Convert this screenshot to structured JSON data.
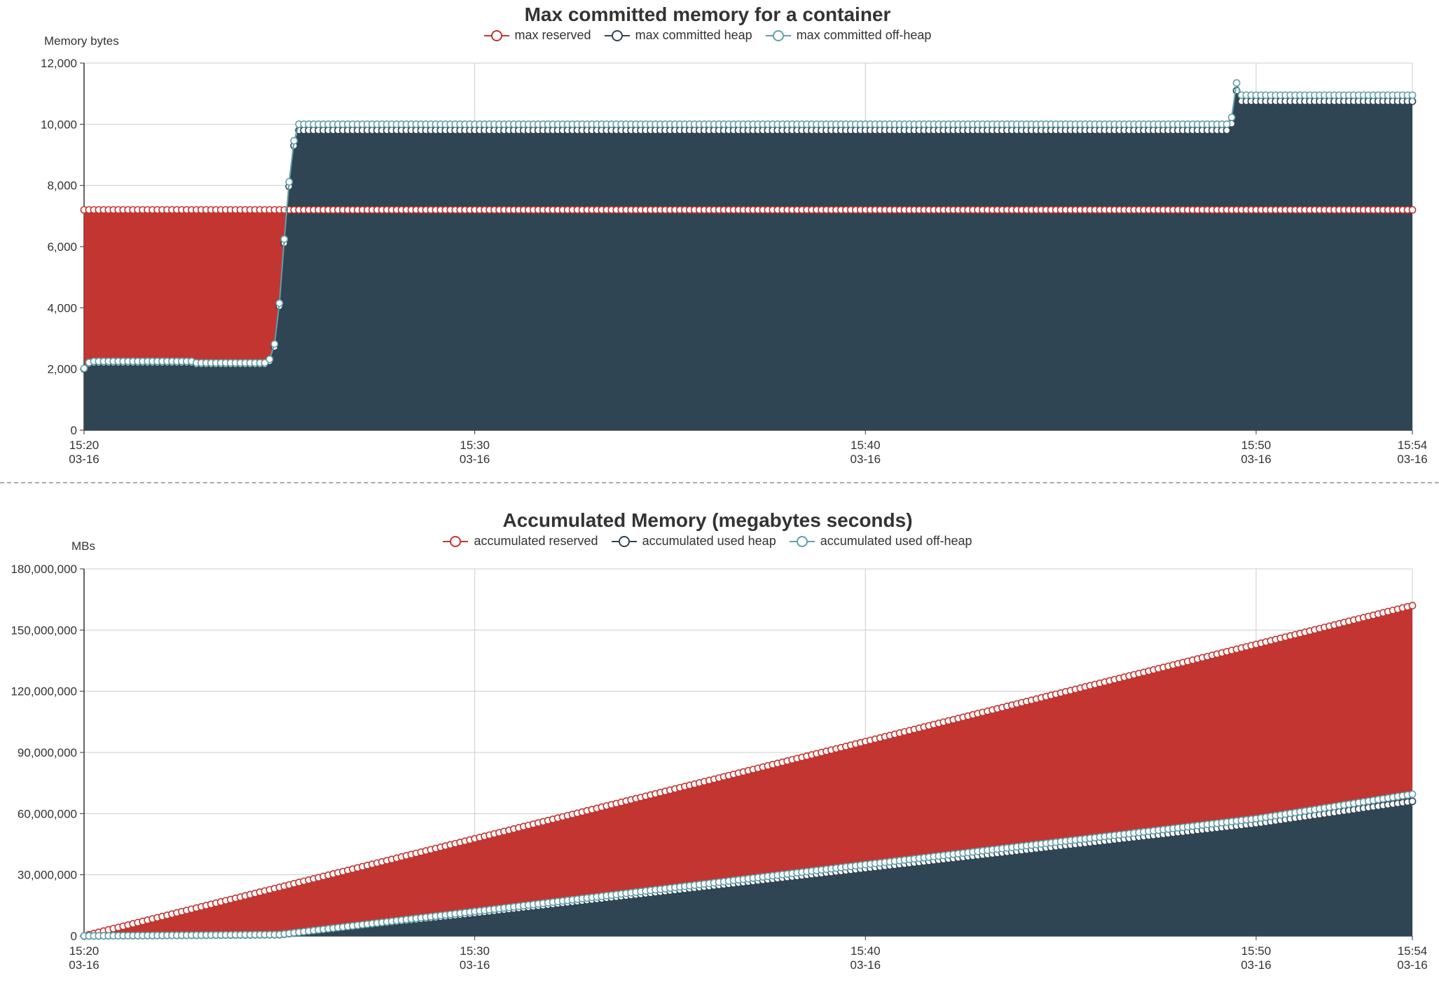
{
  "colors": {
    "reserved": "#c23531",
    "heap": "#2f4554",
    "offheap": "#61a0a8",
    "grid": "#cccccc",
    "axis": "#333333"
  },
  "x_ticks": [
    {
      "time": "15:20",
      "date": "03-16",
      "min": 0
    },
    {
      "time": "15:30",
      "date": "03-16",
      "min": 10
    },
    {
      "time": "15:40",
      "date": "03-16",
      "min": 20
    },
    {
      "time": "15:50",
      "date": "03-16",
      "min": 30
    },
    {
      "time": "15:54",
      "date": "03-16",
      "min": 34
    }
  ],
  "chart_data": [
    {
      "type": "area",
      "title": "Max committed memory for a container",
      "ylabel": "Memory bytes",
      "xlabel": "",
      "x_range_minutes": [
        0,
        34
      ],
      "ylim": [
        0,
        12000
      ],
      "y_ticks": [
        0,
        2000,
        4000,
        6000,
        8000,
        10000,
        12000
      ],
      "y_tick_labels": [
        "0",
        "2,000",
        "4,000",
        "6,000",
        "8,000",
        "10,000",
        "12,000"
      ],
      "legend": [
        "max reserved",
        "max committed heap",
        "max committed off-heap"
      ],
      "n_points": 273,
      "series": [
        {
          "name": "max reserved",
          "key": "reserved",
          "breakpoints": [
            [
              0,
              7200
            ],
            [
              34,
              7200
            ]
          ]
        },
        {
          "name": "max committed heap",
          "key": "heap",
          "breakpoints": [
            [
              0,
              2000
            ],
            [
              0.15,
              2200
            ],
            [
              2.8,
              2200
            ],
            [
              2.85,
              2150
            ],
            [
              4.7,
              2150
            ],
            [
              4.85,
              2450
            ],
            [
              5.0,
              4050
            ],
            [
              5.2,
              7350
            ],
            [
              5.35,
              9200
            ],
            [
              5.5,
              9800
            ],
            [
              29.35,
              9800
            ],
            [
              29.5,
              11100
            ],
            [
              29.6,
              10750
            ],
            [
              34,
              10750
            ]
          ]
        },
        {
          "name": "max committed off-heap",
          "key": "offheap",
          "breakpoints": [
            [
              0,
              2020
            ],
            [
              0.15,
              2250
            ],
            [
              2.8,
              2250
            ],
            [
              2.85,
              2200
            ],
            [
              4.7,
              2200
            ],
            [
              4.85,
              2550
            ],
            [
              5.0,
              4150
            ],
            [
              5.2,
              7500
            ],
            [
              5.35,
              9350
            ],
            [
              5.5,
              10000
            ],
            [
              29.35,
              10000
            ],
            [
              29.5,
              11350
            ],
            [
              29.6,
              10950
            ],
            [
              34,
              10950
            ]
          ]
        }
      ]
    },
    {
      "type": "area",
      "title": "Accumulated Memory (megabytes seconds)",
      "ylabel": "MBs",
      "xlabel": "",
      "x_range_minutes": [
        0,
        34
      ],
      "ylim": [
        0,
        180000000
      ],
      "y_ticks": [
        0,
        30000000,
        60000000,
        90000000,
        120000000,
        150000000,
        180000000
      ],
      "y_tick_labels": [
        "0",
        "30,000,000",
        "60,000,000",
        "90,000,000",
        "120,000,000",
        "150,000,000",
        "180,000,000"
      ],
      "legend": [
        "accumulated reserved",
        "accumulated used heap",
        "accumulated used off-heap"
      ],
      "n_points": 273,
      "series": [
        {
          "name": "accumulated reserved",
          "key": "reserved",
          "breakpoints": [
            [
              0,
              0
            ],
            [
              34,
              162000000
            ]
          ]
        },
        {
          "name": "accumulated used heap",
          "key": "heap",
          "breakpoints": [
            [
              0,
              0
            ],
            [
              5.0,
              600000
            ],
            [
              10,
              11000000
            ],
            [
              20,
              33000000
            ],
            [
              30,
              55000000
            ],
            [
              34,
              66000000
            ]
          ]
        },
        {
          "name": "accumulated used off-heap",
          "key": "offheap",
          "breakpoints": [
            [
              0,
              0
            ],
            [
              5.0,
              700000
            ],
            [
              10,
              12000000
            ],
            [
              20,
              35000000
            ],
            [
              30,
              57500000
            ],
            [
              34,
              69500000
            ]
          ]
        }
      ]
    }
  ]
}
